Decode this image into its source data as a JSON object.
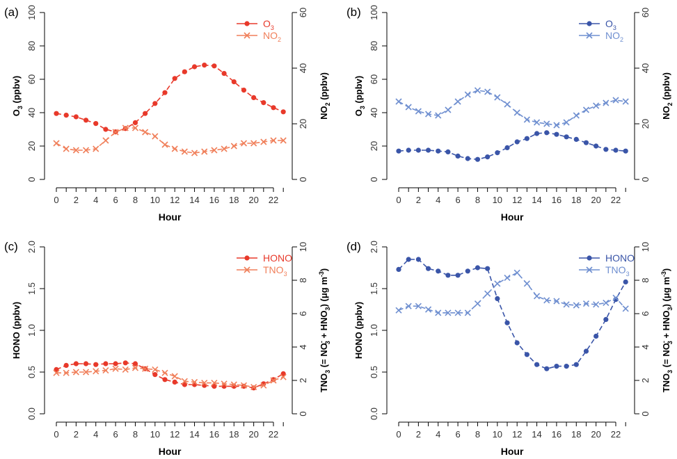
{
  "figure": {
    "colors": {
      "red": "#e8392a",
      "orange": "#f07f5a",
      "blue": "#3a55a8",
      "lightblue": "#6f8fd0",
      "axis": "#000000"
    }
  },
  "chart_data": [
    {
      "type": "line",
      "panel_label": "(a)",
      "xlabel": "Hour",
      "x": [
        0,
        1,
        2,
        3,
        4,
        5,
        6,
        7,
        8,
        9,
        10,
        11,
        12,
        13,
        14,
        15,
        16,
        17,
        18,
        19,
        20,
        21,
        22,
        23
      ],
      "x_ticks": [
        0,
        2,
        4,
        6,
        8,
        10,
        12,
        14,
        16,
        18,
        20,
        22
      ],
      "left_axis": {
        "label_main": "O",
        "label_sub": "3",
        "label_tail": " (ppbv)",
        "ylim": [
          0,
          100
        ],
        "ticks": [
          0,
          20,
          40,
          60,
          80,
          100
        ]
      },
      "right_axis": {
        "label_main": "NO",
        "label_sub": "2",
        "label_tail": " (ppbv)",
        "ylim": [
          0,
          60
        ],
        "ticks": [
          0,
          20,
          40,
          60
        ]
      },
      "series": [
        {
          "name": "O3",
          "legend_main": "O",
          "legend_sub": "3",
          "axis": "left",
          "marker": "dot",
          "color": "#e8392a",
          "values": [
            39.5,
            38.5,
            37.5,
            35.5,
            33.5,
            30,
            28.5,
            30.5,
            34,
            39.5,
            45.5,
            52,
            60.5,
            64.5,
            67.5,
            68.5,
            68,
            63.5,
            58.5,
            53.5,
            49,
            46,
            43,
            40.5
          ]
        },
        {
          "name": "NO2",
          "legend_main": "NO",
          "legend_sub": "2",
          "axis": "right",
          "marker": "x",
          "color": "#f07f5a",
          "values": [
            13,
            11,
            10.5,
            10.5,
            11,
            14,
            17,
            18.5,
            18.5,
            17,
            15.5,
            12.5,
            11,
            10,
            9.5,
            10,
            10.5,
            11,
            12,
            13,
            13,
            13.5,
            14,
            14
          ]
        }
      ]
    },
    {
      "type": "line",
      "panel_label": "(b)",
      "xlabel": "Hour",
      "x": [
        0,
        1,
        2,
        3,
        4,
        5,
        6,
        7,
        8,
        9,
        10,
        11,
        12,
        13,
        14,
        15,
        16,
        17,
        18,
        19,
        20,
        21,
        22,
        23
      ],
      "x_ticks": [
        0,
        2,
        4,
        6,
        8,
        10,
        12,
        14,
        16,
        18,
        20,
        22
      ],
      "left_axis": {
        "label_main": "O",
        "label_sub": "3",
        "label_tail": " (ppbv)",
        "ylim": [
          0,
          100
        ],
        "ticks": [
          0,
          20,
          40,
          60,
          80,
          100
        ]
      },
      "right_axis": {
        "label_main": "NO",
        "label_sub": "2",
        "label_tail": " (ppbv)",
        "ylim": [
          0,
          60
        ],
        "ticks": [
          0,
          20,
          40,
          60
        ]
      },
      "series": [
        {
          "name": "O3",
          "legend_main": "O",
          "legend_sub": "3",
          "axis": "left",
          "marker": "dot",
          "color": "#3a55a8",
          "values": [
            17,
            17.5,
            17.5,
            17.5,
            17,
            16.5,
            14,
            12.5,
            12,
            13.5,
            16,
            19,
            22.5,
            24.5,
            27.5,
            28,
            27,
            25.5,
            24,
            22,
            20,
            18,
            17.5,
            17
          ]
        },
        {
          "name": "NO2",
          "legend_main": "NO",
          "legend_sub": "2",
          "axis": "right",
          "marker": "x",
          "color": "#6f8fd0",
          "values": [
            28,
            26,
            24.5,
            23.5,
            23,
            25,
            28,
            30.5,
            32,
            31.5,
            29.5,
            27,
            24,
            21.5,
            20.5,
            20,
            19.5,
            20.5,
            23,
            25,
            26.5,
            27.5,
            28.5,
            28
          ]
        }
      ]
    },
    {
      "type": "line",
      "panel_label": "(c)",
      "xlabel": "Hour",
      "x": [
        0,
        1,
        2,
        3,
        4,
        5,
        6,
        7,
        8,
        9,
        10,
        11,
        12,
        13,
        14,
        15,
        16,
        17,
        18,
        19,
        20,
        21,
        22,
        23
      ],
      "x_ticks": [
        0,
        2,
        4,
        6,
        8,
        10,
        12,
        14,
        16,
        18,
        20,
        22
      ],
      "left_axis": {
        "label_main": "HONO (ppbv)",
        "label_sub": "",
        "label_tail": "",
        "ylim": [
          0,
          2.0
        ],
        "ticks": [
          "0.0",
          "0.5",
          "1.0",
          "1.5",
          "2.0"
        ]
      },
      "right_axis": {
        "label_main": "TNO",
        "label_sub": "3",
        "label_tail": " (= NO",
        "label_sup": "-",
        "label_sub2": "3",
        "label_tail2": " + HNO",
        "label_sub3": "3",
        "label_tail3": ") (μg m",
        "label_sup2": "-3",
        "label_end": ")",
        "ylim": [
          0,
          10
        ],
        "ticks": [
          0,
          2,
          4,
          6,
          8,
          10
        ]
      },
      "series": [
        {
          "name": "HONO",
          "legend_main": "HONO",
          "legend_sub": "",
          "axis": "left",
          "marker": "dot",
          "color": "#e8392a",
          "values": [
            0.53,
            0.58,
            0.6,
            0.6,
            0.59,
            0.6,
            0.6,
            0.61,
            0.6,
            0.54,
            0.47,
            0.41,
            0.38,
            0.35,
            0.35,
            0.34,
            0.33,
            0.33,
            0.33,
            0.33,
            0.31,
            0.36,
            0.41,
            0.48
          ]
        },
        {
          "name": "TNO3",
          "legend_main": "TNO",
          "legend_sub": "3",
          "axis": "right",
          "marker": "x",
          "color": "#f07f5a",
          "values": [
            2.45,
            2.45,
            2.5,
            2.5,
            2.55,
            2.6,
            2.7,
            2.65,
            2.75,
            2.7,
            2.65,
            2.45,
            2.25,
            1.95,
            1.9,
            1.85,
            1.85,
            1.8,
            1.75,
            1.7,
            1.6,
            1.7,
            2.0,
            2.2
          ]
        }
      ]
    },
    {
      "type": "line",
      "panel_label": "(d)",
      "xlabel": "Hour",
      "x": [
        0,
        1,
        2,
        3,
        4,
        5,
        6,
        7,
        8,
        9,
        10,
        11,
        12,
        13,
        14,
        15,
        16,
        17,
        18,
        19,
        20,
        21,
        22,
        23
      ],
      "x_ticks": [
        0,
        2,
        4,
        6,
        8,
        10,
        12,
        14,
        16,
        18,
        20,
        22
      ],
      "left_axis": {
        "label_main": "HONO (ppbv)",
        "label_sub": "",
        "label_tail": "",
        "ylim": [
          0,
          2.0
        ],
        "ticks": [
          "0.0",
          "0.5",
          "1.0",
          "1.5",
          "2.0"
        ]
      },
      "right_axis": {
        "label_main": "TNO",
        "label_sub": "3",
        "label_tail": " (= NO",
        "label_sup": "-",
        "label_sub2": "3",
        "label_tail2": " + HNO",
        "label_sub3": "3",
        "label_tail3": ") (μg m",
        "label_sup2": "-3",
        "label_end": ")",
        "ylim": [
          0,
          10
        ],
        "ticks": [
          0,
          2,
          4,
          6,
          8,
          10
        ]
      },
      "series": [
        {
          "name": "HONO",
          "legend_main": "HONO",
          "legend_sub": "",
          "axis": "left",
          "marker": "dot",
          "color": "#3a55a8",
          "values": [
            1.73,
            1.85,
            1.85,
            1.74,
            1.71,
            1.66,
            1.66,
            1.71,
            1.75,
            1.74,
            1.38,
            1.09,
            0.85,
            0.71,
            0.59,
            0.54,
            0.57,
            0.57,
            0.59,
            0.75,
            0.93,
            1.13,
            1.37,
            1.58
          ]
        },
        {
          "name": "TNO3",
          "legend_main": "TNO",
          "legend_sub": "3",
          "axis": "right",
          "marker": "x",
          "color": "#6f8fd0",
          "values": [
            6.2,
            6.45,
            6.45,
            6.25,
            6.05,
            6.05,
            6.05,
            6.05,
            6.6,
            7.2,
            7.8,
            8.15,
            8.45,
            7.8,
            7.05,
            6.8,
            6.75,
            6.55,
            6.5,
            6.6,
            6.55,
            6.65,
            6.95,
            6.3
          ]
        }
      ]
    }
  ]
}
